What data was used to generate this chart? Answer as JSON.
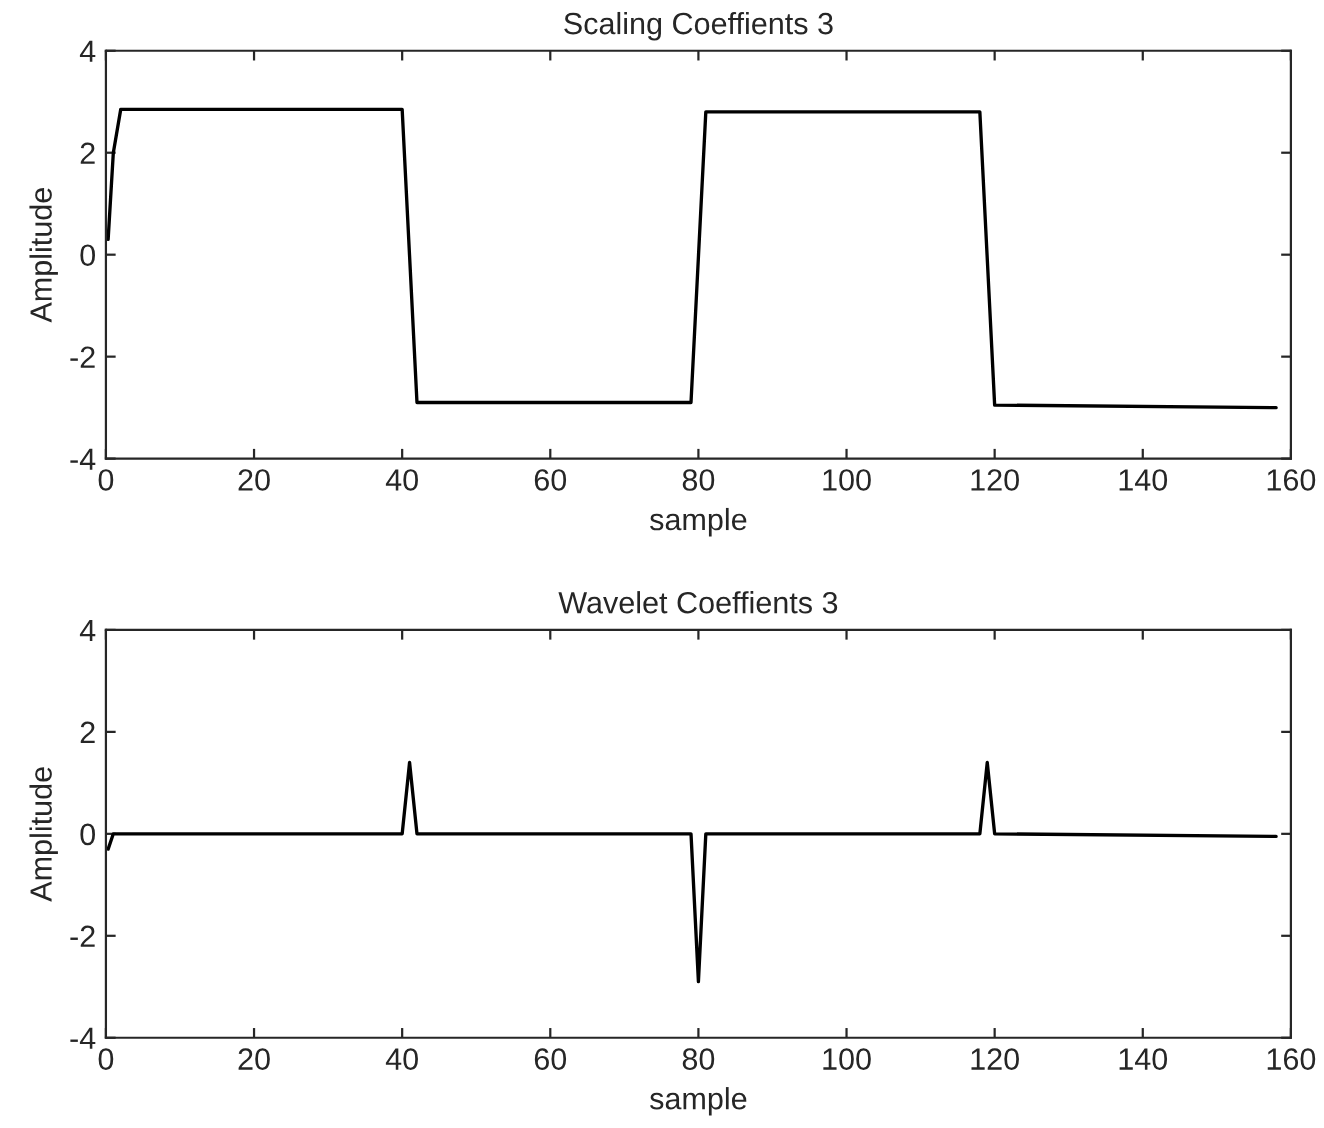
{
  "chart_data": [
    {
      "type": "line",
      "title": "Scaling Coeffients 3",
      "xlabel": "sample",
      "ylabel": "Amplitude",
      "xlim": [
        0,
        160
      ],
      "ylim": [
        -4,
        4
      ],
      "xticks": [
        0,
        20,
        40,
        60,
        80,
        100,
        120,
        140,
        160
      ],
      "yticks": [
        -4,
        -2,
        0,
        2,
        4
      ],
      "grid": false,
      "legend": false,
      "series": [
        {
          "color": "#000000",
          "x": [
            0.3,
            1,
            2,
            40,
            42,
            79,
            81,
            118,
            120,
            158
          ],
          "values": [
            0.3,
            2,
            2.85,
            2.85,
            -2.9,
            -2.9,
            2.8,
            2.8,
            -2.95,
            -3.0
          ]
        }
      ]
    },
    {
      "type": "line",
      "title": "Wavelet Coeffients 3",
      "xlabel": "sample",
      "ylabel": "Amplitude",
      "xlim": [
        0,
        160
      ],
      "ylim": [
        -4,
        4
      ],
      "xticks": [
        0,
        20,
        40,
        60,
        80,
        100,
        120,
        140,
        160
      ],
      "yticks": [
        -4,
        -2,
        0,
        2,
        4
      ],
      "grid": false,
      "legend": false,
      "series": [
        {
          "color": "#000000",
          "x": [
            0.3,
            1,
            40,
            41,
            42,
            79,
            80,
            81,
            118,
            119,
            120,
            158
          ],
          "values": [
            -0.3,
            0,
            0,
            1.4,
            0,
            0,
            -2.9,
            0,
            0,
            1.4,
            0,
            -0.05
          ]
        }
      ]
    }
  ]
}
